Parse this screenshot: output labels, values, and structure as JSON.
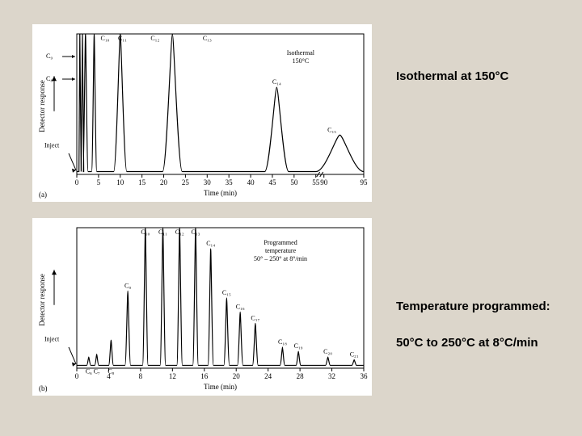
{
  "captions": {
    "top": "Isothermal at 150°C",
    "bottom_label": "Temperature programmed:",
    "bottom_detail": "50°C to 250°C at 8°C/min"
  },
  "chart_a": {
    "type": "chromatogram",
    "background_color": "#ffffff",
    "stroke_color": "#000000",
    "stroke_width": 1.2,
    "font_family": "serif",
    "label_fontsize": 8,
    "axis_fontsize": 9,
    "x_label": "Time (min)",
    "y_label": "Detector response",
    "y_arrow": true,
    "x_ticks": [
      0,
      5,
      10,
      15,
      20,
      25,
      30,
      35,
      40,
      45,
      50,
      55,
      90,
      95
    ],
    "x_has_break_at": 55,
    "inset_text": [
      "Isothermal",
      "150°C"
    ],
    "inset_pos_rel": [
      0.78,
      0.15
    ],
    "inject_label": "Inject",
    "inject_x": 0,
    "early_labels": [
      {
        "text": "C₉",
        "x": -0.5
      },
      {
        "text": "C₈",
        "x": -0.5
      }
    ],
    "peaks": [
      {
        "x": 2,
        "h": 1.0,
        "w": 1.2,
        "label": "C₁₀",
        "lx": 6.5
      },
      {
        "x": 4,
        "h": 1.0,
        "w": 1.2,
        "label": "C₁₁",
        "lx": 10.5
      },
      {
        "x": 10,
        "h": 1.0,
        "w": 3,
        "label": "C₁₂",
        "lx": 18
      },
      {
        "x": 22,
        "h": 1.0,
        "w": 4.5,
        "label": "C₁₃",
        "lx": 30
      },
      {
        "x": 46,
        "h": 0.62,
        "w": 5.5,
        "label": "C₁₄",
        "lx": 46
      },
      {
        "x": 92,
        "h": 0.28,
        "w": 6,
        "label": "C₁₅",
        "lx": 91
      }
    ],
    "baseline_y": 0.0,
    "panel_tag": "(a)"
  },
  "chart_b": {
    "type": "chromatogram",
    "background_color": "#ffffff",
    "stroke_color": "#000000",
    "stroke_width": 1.2,
    "font_family": "serif",
    "label_fontsize": 8,
    "axis_fontsize": 9,
    "x_label": "Time (min)",
    "y_label": "Detector response",
    "y_arrow": true,
    "x_ticks": [
      0,
      4,
      8,
      12,
      16,
      20,
      24,
      28,
      32,
      36
    ],
    "inset_text": [
      "Programmed",
      "temperature",
      "50° – 250° at 8°/min"
    ],
    "inset_pos_rel": [
      0.71,
      0.12
    ],
    "inject_label": "Inject",
    "inject_x": 0,
    "peaks": [
      {
        "x": 1.5,
        "h": 0.08,
        "w": 0.5,
        "label": "C₆",
        "lbelow": true
      },
      {
        "x": 2.5,
        "h": 0.1,
        "w": 0.5,
        "label": "C₇",
        "lbelow": true
      },
      {
        "x": 4.3,
        "h": 0.2,
        "w": 0.6,
        "label": "C₈",
        "lbelow": true
      },
      {
        "x": 6.4,
        "h": 0.55,
        "w": 0.7,
        "label": "C₉"
      },
      {
        "x": 8.6,
        "h": 1.0,
        "w": 0.7,
        "label": "C₁₀"
      },
      {
        "x": 10.8,
        "h": 1.0,
        "w": 0.7,
        "label": "C₁₁"
      },
      {
        "x": 12.9,
        "h": 1.0,
        "w": 0.7,
        "label": "C₁₂"
      },
      {
        "x": 14.9,
        "h": 1.0,
        "w": 0.7,
        "label": "C₁₃"
      },
      {
        "x": 16.8,
        "h": 0.85,
        "w": 0.7,
        "label": "C₁₄"
      },
      {
        "x": 18.8,
        "h": 0.5,
        "w": 0.7,
        "label": "C₁₅"
      },
      {
        "x": 20.5,
        "h": 0.4,
        "w": 0.7,
        "label": "C₁₆"
      },
      {
        "x": 22.4,
        "h": 0.32,
        "w": 0.7,
        "label": "C₁₇"
      },
      {
        "x": 25.8,
        "h": 0.15,
        "w": 0.6,
        "label": "C₁₈"
      },
      {
        "x": 27.8,
        "h": 0.12,
        "w": 0.6,
        "label": "C₁₉"
      },
      {
        "x": 31.5,
        "h": 0.08,
        "w": 0.6,
        "label": "C₂₀"
      },
      {
        "x": 34.8,
        "h": 0.06,
        "w": 0.6,
        "label": "C₂₁"
      }
    ],
    "baseline_y": 0.0,
    "panel_tag": "(b)"
  }
}
